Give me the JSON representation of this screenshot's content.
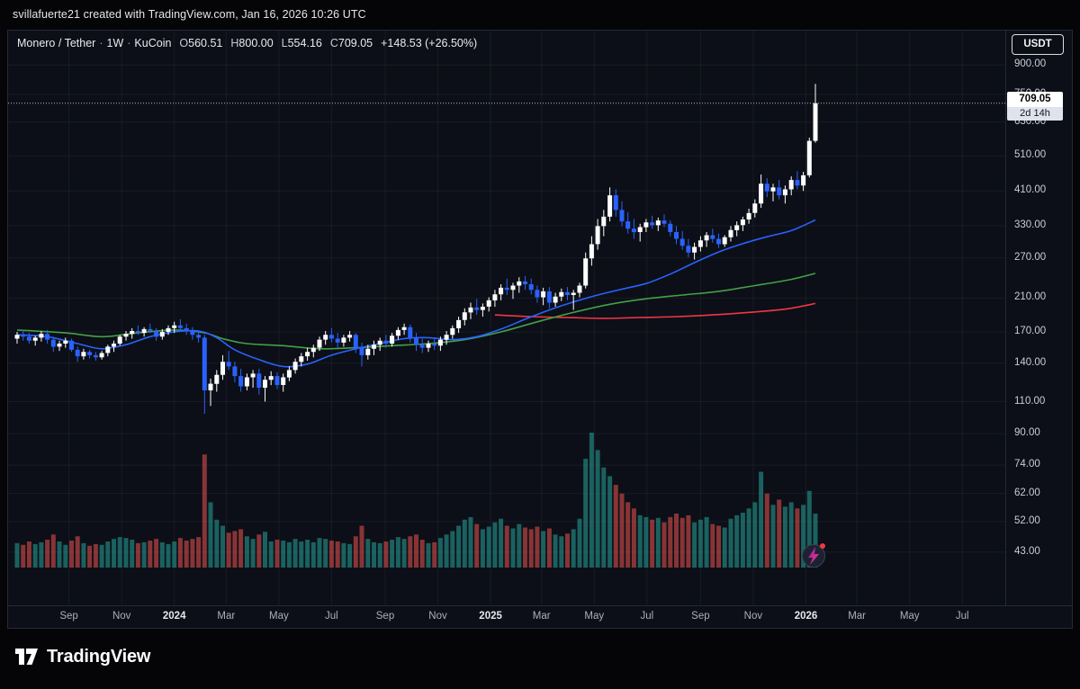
{
  "attribution": "svillafuerte21 created with TradingView.com, Jan 16, 2026 10:26 UTC",
  "legend": {
    "symbol": "Monero / Tether",
    "interval": "1W",
    "exchange": "KuCoin",
    "o_label": "O",
    "o": "560.51",
    "h_label": "H",
    "h": "800.00",
    "l_label": "L",
    "l": "554.16",
    "c_label": "C",
    "c": "709.05",
    "change": "+148.53 (+26.50%)"
  },
  "price_axis": {
    "currency_button": "USDT",
    "last_price": "709.05",
    "countdown": "2d 14h"
  },
  "watermark": {
    "logo_text": "TradingView",
    "logo_icon": "tradingview-mark",
    "spark_icon": "spark-bolt"
  },
  "colors": {
    "candle_up": "#ffffff",
    "candle_down": "#2962ff",
    "volume_up": "#26a69a",
    "volume_down": "#ef5350",
    "ma_fast": "#2962ff",
    "ma_mid": "#43a047",
    "ma_slow": "#f23645",
    "last_price_line": "#b6bac6",
    "panel_bg": "#0c0f17"
  },
  "chart_data": {
    "type": "candlestick",
    "title": "Monero / Tether 1W KuCoin",
    "scale": "log",
    "interval": "1W",
    "start_date": "2023-07-03",
    "last_price": 709.05,
    "price_ticks": [
      {
        "v": 900,
        "label": "900.00"
      },
      {
        "v": 750,
        "label": "750.00"
      },
      {
        "v": 630,
        "label": "630.00"
      },
      {
        "v": 510,
        "label": "510.00"
      },
      {
        "v": 410,
        "label": "410.00"
      },
      {
        "v": 330,
        "label": "330.00"
      },
      {
        "v": 270,
        "label": "270.00"
      },
      {
        "v": 210,
        "label": "210.00"
      },
      {
        "v": 170,
        "label": "170.00"
      },
      {
        "v": 140,
        "label": "140.00"
      },
      {
        "v": 110,
        "label": "110.00"
      },
      {
        "v": 90,
        "label": "90.00"
      },
      {
        "v": 74,
        "label": "74.00"
      },
      {
        "v": 62,
        "label": "62.00"
      },
      {
        "v": 52,
        "label": "52.00"
      },
      {
        "v": 43,
        "label": "43.00"
      }
    ],
    "time_ticks": [
      {
        "label": "Sep",
        "date": "2023-09-01",
        "year": false
      },
      {
        "label": "Nov",
        "date": "2023-11-01",
        "year": false
      },
      {
        "label": "2024",
        "date": "2024-01-01",
        "year": true
      },
      {
        "label": "Mar",
        "date": "2024-03-01",
        "year": false
      },
      {
        "label": "May",
        "date": "2024-05-01",
        "year": false
      },
      {
        "label": "Jul",
        "date": "2024-07-01",
        "year": false
      },
      {
        "label": "Sep",
        "date": "2024-09-01",
        "year": false
      },
      {
        "label": "Nov",
        "date": "2024-11-01",
        "year": false
      },
      {
        "label": "2025",
        "date": "2025-01-01",
        "year": true
      },
      {
        "label": "Mar",
        "date": "2025-03-01",
        "year": false
      },
      {
        "label": "May",
        "date": "2025-05-01",
        "year": false
      },
      {
        "label": "Jul",
        "date": "2025-07-01",
        "year": false
      },
      {
        "label": "Sep",
        "date": "2025-09-01",
        "year": false
      },
      {
        "label": "Nov",
        "date": "2025-11-01",
        "year": false
      },
      {
        "label": "2026",
        "date": "2026-01-01",
        "year": true
      },
      {
        "label": "Mar",
        "date": "2026-03-01",
        "year": false
      },
      {
        "label": "May",
        "date": "2026-05-01",
        "year": false
      },
      {
        "label": "Jul",
        "date": "2026-07-01",
        "year": false
      }
    ],
    "candles": [
      [
        163,
        170,
        158,
        167,
        28
      ],
      [
        167,
        172,
        161,
        165,
        26
      ],
      [
        165,
        169,
        158,
        161,
        30
      ],
      [
        161,
        166,
        156,
        164,
        27
      ],
      [
        164,
        171,
        160,
        168,
        29
      ],
      [
        168,
        172,
        158,
        162,
        32
      ],
      [
        162,
        165,
        150,
        155,
        38
      ],
      [
        155,
        161,
        151,
        158,
        30
      ],
      [
        158,
        164,
        154,
        161,
        26
      ],
      [
        161,
        163,
        150,
        152,
        31
      ],
      [
        152,
        155,
        141,
        146,
        36
      ],
      [
        146,
        153,
        143,
        150,
        28
      ],
      [
        150,
        152,
        144,
        147,
        25
      ],
      [
        147,
        150,
        142,
        145,
        27
      ],
      [
        145,
        151,
        143,
        149,
        26
      ],
      [
        149,
        157,
        146,
        155,
        30
      ],
      [
        155,
        161,
        150,
        158,
        33
      ],
      [
        158,
        167,
        156,
        165,
        35
      ],
      [
        165,
        171,
        161,
        168,
        34
      ],
      [
        168,
        174,
        163,
        171,
        32
      ],
      [
        171,
        177,
        167,
        169,
        28
      ],
      [
        169,
        175,
        165,
        173,
        29
      ],
      [
        173,
        179,
        169,
        171,
        31
      ],
      [
        171,
        174,
        161,
        165,
        33
      ],
      [
        165,
        173,
        162,
        170,
        29
      ],
      [
        170,
        177,
        167,
        174,
        27
      ],
      [
        174,
        181,
        169,
        177,
        30
      ],
      [
        177,
        184,
        171,
        174,
        34
      ],
      [
        174,
        179,
        167,
        171,
        31
      ],
      [
        171,
        175,
        162,
        167,
        33
      ],
      [
        167,
        171,
        159,
        164,
        35
      ],
      [
        164,
        167,
        102,
        118,
        130
      ],
      [
        118,
        127,
        107,
        123,
        75
      ],
      [
        123,
        134,
        117,
        130,
        55
      ],
      [
        130,
        147,
        126,
        141,
        48
      ],
      [
        141,
        151,
        134,
        137,
        40
      ],
      [
        137,
        141,
        124,
        129,
        42
      ],
      [
        129,
        135,
        117,
        121,
        44
      ],
      [
        121,
        131,
        118,
        128,
        36
      ],
      [
        128,
        134,
        120,
        131,
        33
      ],
      [
        131,
        135,
        115,
        120,
        38
      ],
      [
        120,
        129,
        110,
        126,
        41
      ],
      [
        126,
        133,
        122,
        129,
        30
      ],
      [
        129,
        132,
        119,
        122,
        32
      ],
      [
        122,
        131,
        117,
        128,
        31
      ],
      [
        128,
        137,
        125,
        134,
        29
      ],
      [
        134,
        144,
        131,
        141,
        33
      ],
      [
        141,
        149,
        137,
        146,
        30
      ],
      [
        146,
        154,
        142,
        150,
        32
      ],
      [
        150,
        157,
        145,
        154,
        29
      ],
      [
        154,
        165,
        151,
        162,
        34
      ],
      [
        162,
        171,
        157,
        167,
        33
      ],
      [
        167,
        174,
        159,
        163,
        31
      ],
      [
        163,
        169,
        154,
        159,
        30
      ],
      [
        159,
        167,
        155,
        164,
        28
      ],
      [
        164,
        171,
        160,
        167,
        27
      ],
      [
        167,
        169,
        149,
        154,
        36
      ],
      [
        154,
        159,
        137,
        147,
        48
      ],
      [
        147,
        157,
        143,
        153,
        33
      ],
      [
        153,
        161,
        147,
        157,
        29
      ],
      [
        157,
        164,
        151,
        161,
        28
      ],
      [
        161,
        167,
        154,
        158,
        30
      ],
      [
        158,
        169,
        155,
        166,
        32
      ],
      [
        166,
        175,
        162,
        172,
        35
      ],
      [
        172,
        179,
        167,
        175,
        33
      ],
      [
        175,
        178,
        159,
        164,
        36
      ],
      [
        164,
        169,
        151,
        157,
        38
      ],
      [
        157,
        163,
        149,
        154,
        32
      ],
      [
        154,
        161,
        150,
        158,
        28
      ],
      [
        158,
        164,
        152,
        156,
        29
      ],
      [
        156,
        165,
        151,
        162,
        34
      ],
      [
        162,
        171,
        157,
        167,
        38
      ],
      [
        167,
        177,
        163,
        174,
        42
      ],
      [
        174,
        187,
        169,
        183,
        48
      ],
      [
        183,
        197,
        177,
        192,
        55
      ],
      [
        192,
        204,
        184,
        198,
        58
      ],
      [
        198,
        209,
        189,
        195,
        50
      ],
      [
        195,
        203,
        187,
        199,
        44
      ],
      [
        199,
        211,
        193,
        207,
        47
      ],
      [
        207,
        221,
        199,
        215,
        52
      ],
      [
        215,
        229,
        207,
        224,
        56
      ],
      [
        224,
        237,
        214,
        221,
        48
      ],
      [
        221,
        231,
        209,
        227,
        45
      ],
      [
        227,
        239,
        217,
        233,
        50
      ],
      [
        233,
        241,
        221,
        229,
        46
      ],
      [
        229,
        237,
        215,
        221,
        44
      ],
      [
        221,
        227,
        204,
        211,
        47
      ],
      [
        211,
        224,
        201,
        219,
        42
      ],
      [
        219,
        225,
        197,
        204,
        45
      ],
      [
        204,
        217,
        199,
        212,
        38
      ],
      [
        212,
        223,
        206,
        218,
        36
      ],
      [
        218,
        225,
        207,
        214,
        39
      ],
      [
        214,
        221,
        195,
        217,
        44
      ],
      [
        217,
        231,
        211,
        227,
        56
      ],
      [
        227,
        279,
        223,
        269,
        125
      ],
      [
        269,
        309,
        257,
        294,
        155
      ],
      [
        294,
        344,
        284,
        329,
        135
      ],
      [
        329,
        364,
        309,
        349,
        115
      ],
      [
        349,
        419,
        339,
        399,
        105
      ],
      [
        399,
        414,
        349,
        364,
        95
      ],
      [
        364,
        384,
        329,
        339,
        85
      ],
      [
        339,
        359,
        314,
        324,
        75
      ],
      [
        324,
        344,
        304,
        317,
        68
      ],
      [
        317,
        334,
        299,
        327,
        60
      ],
      [
        327,
        344,
        317,
        337,
        58
      ],
      [
        337,
        351,
        324,
        331,
        55
      ],
      [
        331,
        347,
        319,
        341,
        57
      ],
      [
        341,
        354,
        327,
        334,
        52
      ],
      [
        334,
        341,
        309,
        317,
        58
      ],
      [
        317,
        329,
        294,
        304,
        62
      ],
      [
        304,
        319,
        284,
        291,
        57
      ],
      [
        291,
        304,
        271,
        279,
        60
      ],
      [
        279,
        297,
        267,
        289,
        52
      ],
      [
        289,
        309,
        281,
        301,
        55
      ],
      [
        301,
        317,
        289,
        311,
        58
      ],
      [
        311,
        324,
        297,
        304,
        50
      ],
      [
        304,
        314,
        287,
        294,
        48
      ],
      [
        294,
        311,
        289,
        307,
        46
      ],
      [
        307,
        329,
        299,
        321,
        56
      ],
      [
        321,
        339,
        309,
        331,
        60
      ],
      [
        331,
        349,
        319,
        343,
        63
      ],
      [
        343,
        367,
        334,
        357,
        68
      ],
      [
        357,
        389,
        347,
        379,
        75
      ],
      [
        379,
        454,
        369,
        429,
        110
      ],
      [
        429,
        444,
        394,
        409,
        85
      ],
      [
        409,
        429,
        384,
        419,
        72
      ],
      [
        419,
        439,
        389,
        399,
        78
      ],
      [
        399,
        424,
        379,
        414,
        70
      ],
      [
        414,
        449,
        399,
        439,
        75
      ],
      [
        439,
        464,
        414,
        424,
        68
      ],
      [
        424,
        462,
        410,
        452,
        72
      ],
      [
        452,
        572,
        446,
        560.51,
        88
      ],
      [
        560.51,
        800,
        554.16,
        709.05,
        62
      ]
    ],
    "ma_lines": [
      {
        "name": "ma-fast-blue",
        "color": "#2962ff",
        "points": [
          [
            0,
            167
          ],
          [
            5,
            165
          ],
          [
            10,
            158
          ],
          [
            14,
            153
          ],
          [
            18,
            157
          ],
          [
            22,
            165
          ],
          [
            26,
            170
          ],
          [
            30,
            171
          ],
          [
            33,
            164
          ],
          [
            36,
            152
          ],
          [
            40,
            143
          ],
          [
            44,
            137
          ],
          [
            48,
            139
          ],
          [
            52,
            147
          ],
          [
            56,
            153
          ],
          [
            60,
            158
          ],
          [
            64,
            163
          ],
          [
            68,
            164
          ],
          [
            72,
            162
          ],
          [
            76,
            165
          ],
          [
            80,
            173
          ],
          [
            84,
            184
          ],
          [
            88,
            195
          ],
          [
            92,
            205
          ],
          [
            96,
            214
          ],
          [
            100,
            222
          ],
          [
            104,
            230
          ],
          [
            108,
            244
          ],
          [
            112,
            262
          ],
          [
            116,
            280
          ],
          [
            120,
            295
          ],
          [
            124,
            308
          ],
          [
            128,
            320
          ],
          [
            132,
            342
          ]
        ]
      },
      {
        "name": "ma-mid-green",
        "color": "#43a047",
        "points": [
          [
            0,
            172
          ],
          [
            8,
            169
          ],
          [
            14,
            165
          ],
          [
            20,
            169
          ],
          [
            26,
            172
          ],
          [
            31,
            169
          ],
          [
            34,
            163
          ],
          [
            38,
            158
          ],
          [
            44,
            156
          ],
          [
            50,
            153
          ],
          [
            56,
            154
          ],
          [
            62,
            156
          ],
          [
            68,
            158
          ],
          [
            74,
            162
          ],
          [
            80,
            170
          ],
          [
            86,
            181
          ],
          [
            92,
            192
          ],
          [
            98,
            202
          ],
          [
            104,
            209
          ],
          [
            110,
            214
          ],
          [
            116,
            219
          ],
          [
            122,
            227
          ],
          [
            128,
            236
          ],
          [
            132,
            245
          ]
        ]
      },
      {
        "name": "ma-slow-red",
        "color": "#f23645",
        "points": [
          [
            79,
            189
          ],
          [
            85,
            187
          ],
          [
            91,
            186
          ],
          [
            97,
            185
          ],
          [
            103,
            186
          ],
          [
            109,
            187
          ],
          [
            115,
            189
          ],
          [
            121,
            192
          ],
          [
            127,
            196
          ],
          [
            132,
            203
          ]
        ]
      }
    ]
  }
}
